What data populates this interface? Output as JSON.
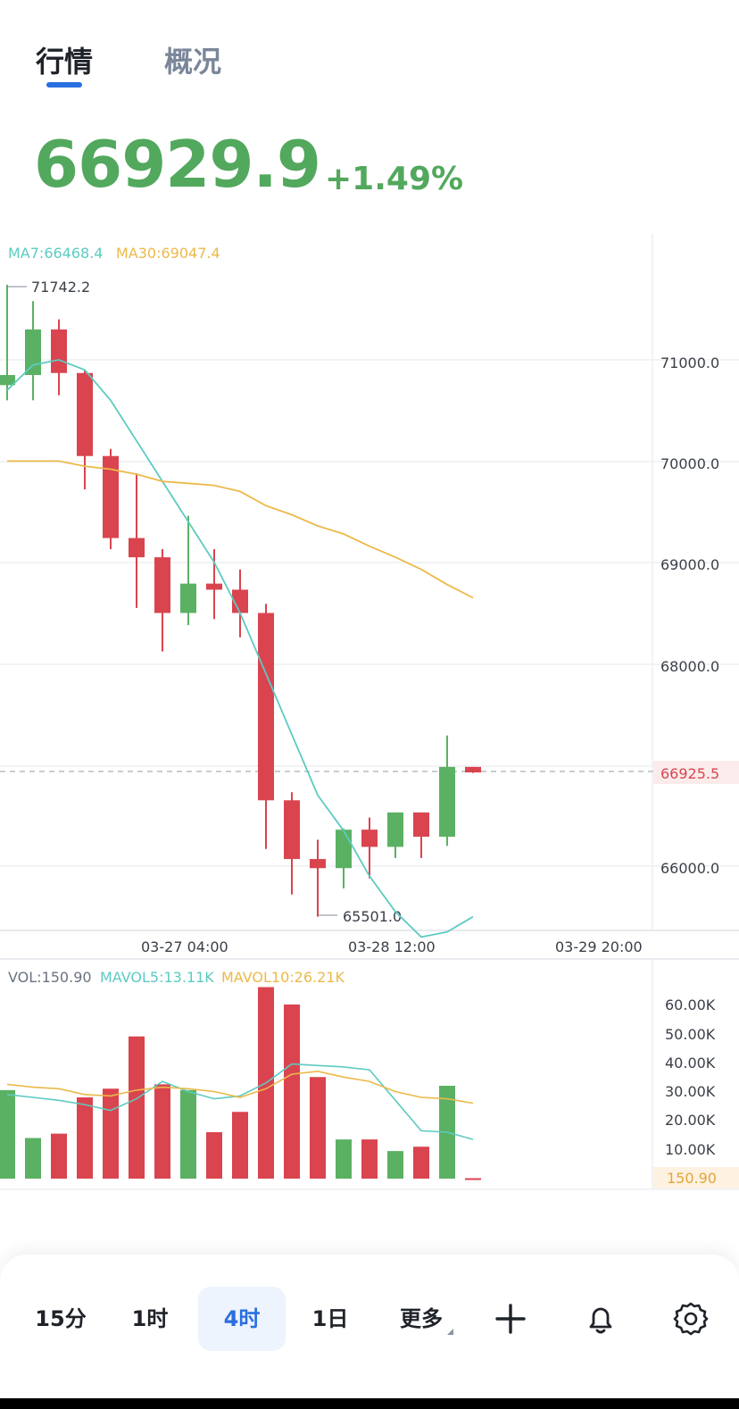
{
  "tabs": [
    {
      "label": "行情",
      "active": true
    },
    {
      "label": "概况",
      "active": false
    }
  ],
  "ticker": {
    "price": "66929.9",
    "change": "+1.49%",
    "color": "#52a85d"
  },
  "colors": {
    "up": "#5bb163",
    "down": "#d9444f",
    "ma7": "#5ccbc1",
    "ma30": "#ecb94a",
    "grid": "#eeeff2",
    "axis_text": "#3a3f47",
    "last_price_tag_bg": "#fbeceb",
    "last_vol_tag_bg": "#fdf1e1"
  },
  "legend": {
    "ma7": "MA7:66468.4",
    "ma30": "MA30:69047.4",
    "vol": "VOL:150.90",
    "mavol5": "MAVOL5:13.11K",
    "mavol10": "MAVOL10:26.21K"
  },
  "annotations": {
    "high": "71742.2",
    "low": "65501.0",
    "last_price": "66925.5",
    "last_volume": "150.90"
  },
  "chart_data": [
    {
      "type": "candlestick",
      "price_axis_ticks": [
        "71000.0",
        "70000.0",
        "69000.0",
        "68000.0",
        "66000.0"
      ],
      "time_axis_labels": [
        "03-27 04:00",
        "03-28 12:00",
        "03-29 20:00"
      ],
      "price_range": [
        65400,
        71900
      ],
      "candles": [
        {
          "o": 70750,
          "h": 71742,
          "l": 70600,
          "c": 70850
        },
        {
          "o": 70850,
          "h": 71580,
          "l": 70600,
          "c": 71300
        },
        {
          "o": 71300,
          "h": 71400,
          "l": 70650,
          "c": 70870
        },
        {
          "o": 70870,
          "h": 70900,
          "l": 69720,
          "c": 70050
        },
        {
          "o": 70050,
          "h": 70120,
          "l": 69130,
          "c": 69240
        },
        {
          "o": 69240,
          "h": 69880,
          "l": 68550,
          "c": 69050
        },
        {
          "o": 69050,
          "h": 69130,
          "l": 68120,
          "c": 68500
        },
        {
          "o": 68500,
          "h": 69460,
          "l": 68380,
          "c": 68790
        },
        {
          "o": 68790,
          "h": 69130,
          "l": 68440,
          "c": 68730
        },
        {
          "o": 68730,
          "h": 68930,
          "l": 68260,
          "c": 68500
        },
        {
          "o": 68500,
          "h": 68590,
          "l": 66170,
          "c": 66650
        },
        {
          "o": 66650,
          "h": 66730,
          "l": 65720,
          "c": 66070
        },
        {
          "o": 66070,
          "h": 66260,
          "l": 65501,
          "c": 65980
        },
        {
          "o": 65980,
          "h": 66370,
          "l": 65780,
          "c": 66360
        },
        {
          "o": 66360,
          "h": 66480,
          "l": 65880,
          "c": 66190
        },
        {
          "o": 66190,
          "h": 66530,
          "l": 66080,
          "c": 66530
        },
        {
          "o": 66530,
          "h": 66530,
          "l": 66080,
          "c": 66290
        },
        {
          "o": 66290,
          "h": 67290,
          "l": 66200,
          "c": 66980
        },
        {
          "o": 66980,
          "h": 66980,
          "l": 66920,
          "c": 66925.5
        }
      ],
      "series": [
        {
          "name": "MA7",
          "values": [
            70700,
            70950,
            71000,
            70900,
            70600,
            70200,
            69800,
            69400,
            69000,
            68500,
            67900,
            67300,
            66700,
            66350,
            65900,
            65550,
            65300,
            65350,
            65500
          ]
        },
        {
          "name": "MA30",
          "values": [
            70000,
            70000,
            70000,
            69950,
            69920,
            69870,
            69800,
            69780,
            69760,
            69700,
            69560,
            69470,
            69360,
            69280,
            69160,
            69050,
            68930,
            68780,
            68650
          ]
        }
      ]
    },
    {
      "type": "bar",
      "name": "volume",
      "axis_ticks": [
        "60.00K",
        "50.00K",
        "40.00K",
        "30.00K",
        "20.00K",
        "10.00K"
      ],
      "ylim": [
        0,
        66000
      ],
      "values": [
        30500,
        14000,
        15500,
        28000,
        31000,
        49000,
        32500,
        30500,
        16000,
        23000,
        66000,
        60000,
        35000,
        13500,
        13500,
        9500,
        11000,
        32000,
        150.9
      ],
      "series": [
        {
          "name": "MAVOL5",
          "values": [
            29000,
            28000,
            27000,
            25500,
            23500,
            27500,
            33500,
            30000,
            27500,
            28500,
            33000,
            39500,
            39000,
            38500,
            37500,
            27000,
            16500,
            16000,
            13500
          ]
        },
        {
          "name": "MAVOL10",
          "values": [
            32500,
            31500,
            31000,
            29000,
            28500,
            30500,
            31500,
            31000,
            30000,
            28000,
            31000,
            36000,
            37000,
            35000,
            33500,
            30000,
            28000,
            27500,
            26000
          ]
        }
      ]
    }
  ],
  "toolbar": {
    "items": [
      {
        "label": "15分",
        "active": false
      },
      {
        "label": "1时",
        "active": false
      },
      {
        "label": "4时",
        "active": true
      },
      {
        "label": "1日",
        "active": false
      },
      {
        "label": "更多",
        "active": false
      }
    ],
    "icons": [
      "plus-icon",
      "bell-icon",
      "gear-icon"
    ]
  }
}
